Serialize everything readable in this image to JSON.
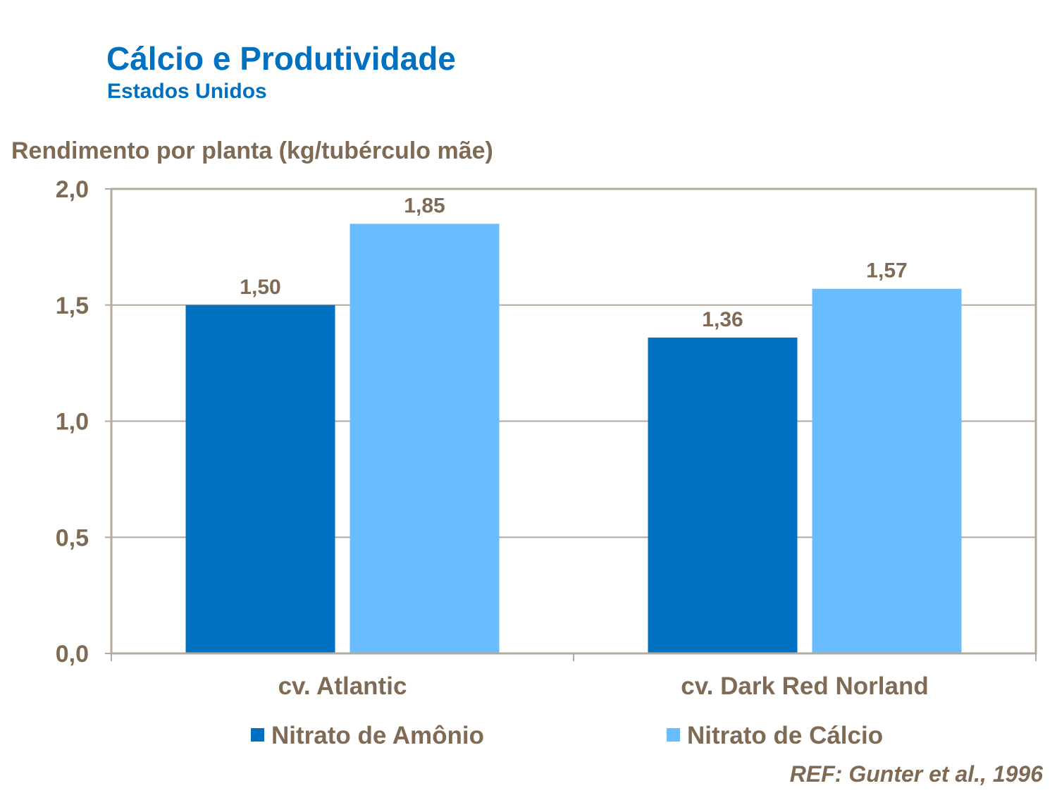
{
  "chart_data": {
    "type": "bar",
    "title": "Cálcio e Produtividade",
    "subtitle": "Estados Unidos",
    "ylabel": "Rendimento por planta (kg/tubérculo mãe)",
    "xlabel": "",
    "categories": [
      "cv. Atlantic",
      "cv. Dark Red Norland"
    ],
    "series": [
      {
        "name": "Nitrato de Amônio",
        "values": [
          1.5,
          1.36
        ],
        "labels": [
          "1,50",
          "1,36"
        ],
        "color": "#0070c0"
      },
      {
        "name": "Nitrato de Cálcio",
        "values": [
          1.85,
          1.57
        ],
        "labels": [
          "1,85",
          "1,57"
        ],
        "color": "#69bdff"
      }
    ],
    "ylim": [
      0,
      2.0
    ],
    "yticks": [
      0,
      0.5,
      1.0,
      1.5,
      2.0
    ],
    "ytick_labels": [
      "0,0",
      "0,5",
      "1,0",
      "1,5",
      "2,0"
    ],
    "grid": true,
    "legend": "bottom",
    "annotation": "REF: Gunter et al., 1996"
  }
}
